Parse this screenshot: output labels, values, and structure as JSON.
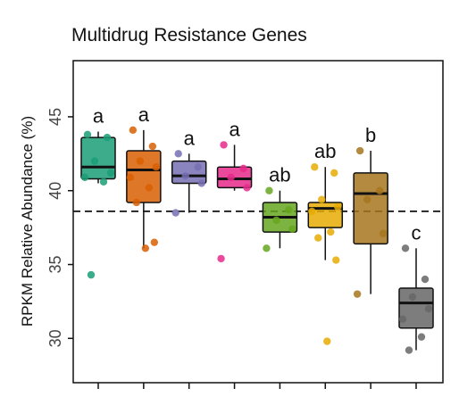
{
  "chart_data": {
    "type": "box",
    "title": "Multidrug Resistance Genes",
    "ylabel": "RPKM Relative Abundance (%)",
    "xlabel": "",
    "ylim": [
      27.0,
      48.8
    ],
    "yticks": [
      30,
      35,
      40,
      45
    ],
    "reference_line": 38.6,
    "grid": false,
    "series": [
      {
        "color": "#1b9e77",
        "letter": "a",
        "q1": 40.8,
        "median": 41.6,
        "q3": 43.6,
        "whisker_low": 40.5,
        "whisker_high": 44.0,
        "points": [
          43.8,
          43.6,
          42.0,
          41.2,
          40.9,
          40.6,
          34.3
        ]
      },
      {
        "color": "#d95f02",
        "letter": "a",
        "q1": 39.2,
        "median": 41.4,
        "q3": 42.7,
        "whisker_low": 36.1,
        "whisker_high": 44.1,
        "points": [
          44.1,
          43.0,
          42.0,
          41.6,
          40.9,
          40.2,
          39.2,
          36.5,
          36.1
        ]
      },
      {
        "color": "#7570b3",
        "letter": "a",
        "q1": 40.5,
        "median": 41.0,
        "q3": 42.0,
        "whisker_low": 38.5,
        "whisker_high": 42.5,
        "points": [
          42.5,
          41.6,
          41.0,
          40.5,
          38.5
        ]
      },
      {
        "color": "#e7298a",
        "letter": "a",
        "q1": 40.2,
        "median": 40.8,
        "q3": 41.6,
        "whisker_low": 40.0,
        "whisker_high": 43.1,
        "points": [
          43.1,
          41.5,
          40.9,
          40.2,
          35.4
        ]
      },
      {
        "color": "#66a61e",
        "letter": "ab",
        "q1": 37.2,
        "median": 38.2,
        "q3": 39.2,
        "whisker_low": 36.1,
        "whisker_high": 40.0,
        "points": [
          40.0,
          38.7,
          38.0,
          37.4,
          36.1
        ]
      },
      {
        "color": "#e6ab02",
        "letter": "ab",
        "q1": 37.5,
        "median": 38.8,
        "q3": 39.2,
        "whisker_low": 35.3,
        "whisker_high": 41.6,
        "points": [
          41.6,
          41.2,
          39.4,
          38.9,
          38.6,
          37.2,
          36.8,
          35.3,
          29.8
        ]
      },
      {
        "color": "#a6761d",
        "letter": "b",
        "q1": 36.4,
        "median": 39.8,
        "q3": 41.2,
        "whisker_low": 33.0,
        "whisker_high": 42.7,
        "points": [
          42.7,
          40.0,
          39.4,
          37.1,
          33.0
        ]
      },
      {
        "color": "#666666",
        "letter": "c",
        "q1": 30.7,
        "median": 32.4,
        "q3": 33.4,
        "whisker_low": 29.2,
        "whisker_high": 36.1,
        "points": [
          36.1,
          34.0,
          32.8,
          32.0,
          31.3,
          30.1,
          29.2
        ]
      }
    ]
  }
}
